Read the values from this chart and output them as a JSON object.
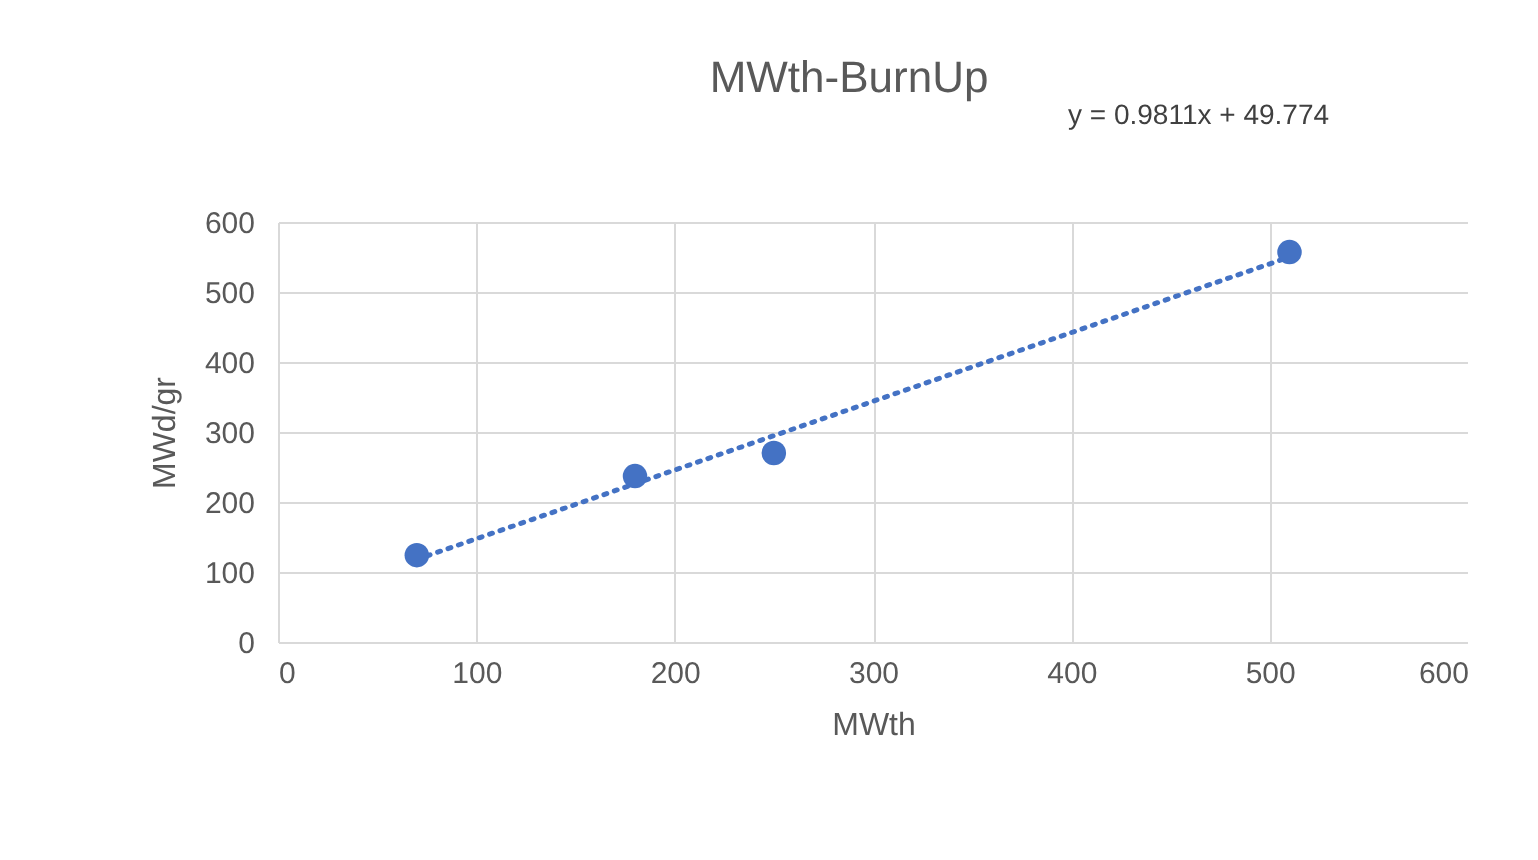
{
  "chart_data": {
    "type": "scatter",
    "title": "MWth-BurnUp",
    "xlabel": "MWth",
    "ylabel": "MWd/gr",
    "annotations": [
      "y = 0.9811x + 49.774"
    ],
    "series": [
      {
        "color": "#4472c4",
        "x": [
          70,
          180,
          250,
          510
        ],
        "values": [
          124,
          237,
          270,
          557
        ],
        "marker": "circle"
      },
      {
        "type": "line",
        "color": "#4472c4",
        "x": [
          70,
          510
        ],
        "values": [
          118,
          550
        ],
        "line_style": "dotted"
      }
    ],
    "xlim": [
      0,
      600
    ],
    "xticks": [
      0,
      100,
      200,
      300,
      400,
      500,
      600
    ],
    "ylim": [
      0,
      600
    ],
    "yticks": [
      0,
      100,
      200,
      300,
      400,
      500,
      600
    ],
    "grid": true
  }
}
